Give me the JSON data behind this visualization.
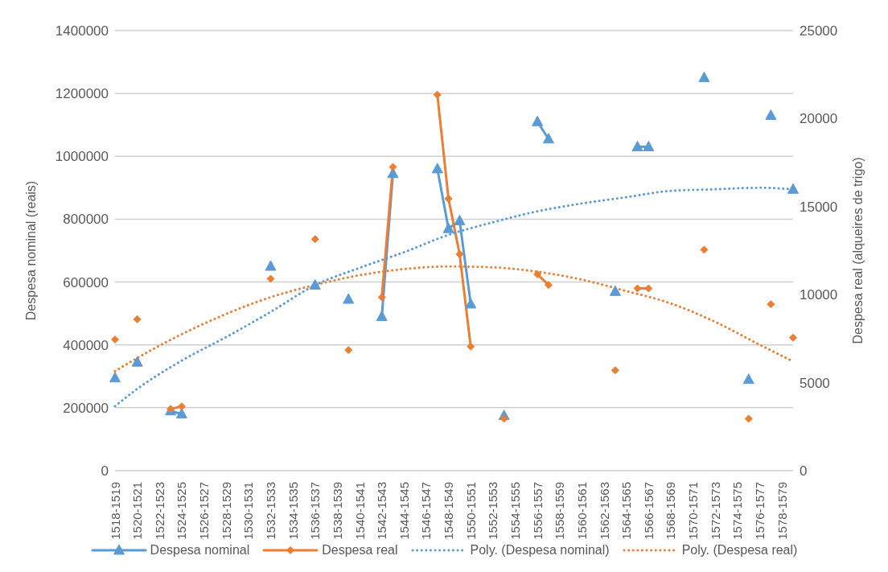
{
  "chart_data": {
    "type": "line",
    "xlabel": null,
    "ylabel": "Despesa nominal (reais)",
    "y2label": "Despesa real (alqueires de trigo)",
    "categories": [
      "1518-1519",
      null,
      "1520-1521",
      null,
      "1522-1523",
      null,
      "1524-1525",
      null,
      "1526-1527",
      null,
      "1528-1529",
      null,
      "1530-1531",
      null,
      "1532-1533",
      null,
      "1534-1535",
      null,
      "1536-1537",
      null,
      "1538-1539",
      null,
      "1540-1541",
      null,
      "1542-1543",
      null,
      "1544-1545",
      null,
      "1546-1547",
      null,
      "1548-1549",
      null,
      "1550-1551",
      null,
      "1552-1553",
      null,
      "1554-1555",
      null,
      "1556-1557",
      null,
      "1558-1559",
      null,
      "1560-1561",
      null,
      "1562-1563",
      null,
      "1564-1565",
      null,
      "1566-1567",
      null,
      "1568-1569",
      null,
      "1570-1571",
      null,
      "1572-1573",
      null,
      "1574-1575",
      null,
      "1576-1577",
      null,
      "1578-1579",
      null
    ],
    "series": [
      {
        "name": "Despesa nominal",
        "color": "#5b9bd5",
        "marker": "triangle",
        "line_style": "solid",
        "values": [
          295000,
          null,
          345000,
          null,
          null,
          190000,
          180000,
          null,
          null,
          null,
          null,
          null,
          null,
          null,
          650000,
          null,
          null,
          null,
          590000,
          null,
          null,
          545000,
          null,
          null,
          490000,
          945000,
          null,
          null,
          null,
          960000,
          770000,
          795000,
          530000,
          null,
          null,
          175000,
          null,
          null,
          1110000,
          1055000,
          null,
          null,
          null,
          null,
          null,
          570000,
          null,
          1030000,
          1030000,
          null,
          null,
          null,
          null,
          1250000,
          null,
          null,
          null,
          290000,
          null,
          1130000,
          null,
          895000
        ]
      },
      {
        "name": "Despesa real",
        "color": "#ed7d31",
        "marker": "diamond",
        "line_style": "solid",
        "axis": "y2",
        "values": [
          7450,
          null,
          8600,
          null,
          null,
          3500,
          3650,
          null,
          null,
          null,
          null,
          null,
          null,
          null,
          10900,
          null,
          null,
          null,
          13150,
          null,
          null,
          6850,
          null,
          null,
          9850,
          17250,
          null,
          null,
          null,
          21350,
          15450,
          12300,
          7050,
          null,
          null,
          2950,
          null,
          null,
          11150,
          10550,
          null,
          null,
          null,
          null,
          null,
          5700,
          null,
          10350,
          10350,
          null,
          null,
          null,
          null,
          12550,
          null,
          null,
          null,
          2950,
          null,
          9450,
          null,
          7550
        ]
      },
      {
        "name": "Poly. (Despesa nominal)",
        "color": "#5b9bd5",
        "marker": "none",
        "line_style": "dotted",
        "values": [
          205000,
          null,
          260000,
          null,
          null,
          null,
          350000,
          null,
          null,
          null,
          425000,
          null,
          null,
          null,
          505000,
          null,
          null,
          null,
          590000,
          null,
          null,
          null,
          645000,
          null,
          null,
          null,
          695000,
          null,
          null,
          null,
          750000,
          null,
          null,
          null,
          790000,
          null,
          null,
          null,
          825000,
          null,
          null,
          null,
          850000,
          null,
          null,
          null,
          870000,
          null,
          null,
          null,
          890000,
          null,
          null,
          null,
          895000,
          null,
          null,
          null,
          900000,
          null,
          null,
          895000
        ]
      },
      {
        "name": "Poly. (Despesa real)",
        "color": "#ed7d31",
        "marker": "none",
        "line_style": "dotted",
        "axis": "y2",
        "values": [
          5650,
          null,
          6400,
          null,
          null,
          null,
          7750,
          null,
          null,
          null,
          8900,
          null,
          null,
          null,
          9850,
          null,
          null,
          null,
          10550,
          null,
          null,
          null,
          11100,
          null,
          null,
          null,
          11450,
          null,
          null,
          null,
          11600,
          null,
          null,
          null,
          11550,
          null,
          null,
          null,
          11300,
          null,
          null,
          null,
          10850,
          null,
          null,
          null,
          10200,
          null,
          null,
          null,
          9500,
          null,
          null,
          null,
          8450,
          null,
          null,
          null,
          7150,
          null,
          null,
          6200
        ]
      }
    ],
    "ylim": [
      0,
      1400000
    ],
    "yticks": [
      0,
      200000,
      400000,
      600000,
      800000,
      1000000,
      1200000,
      1400000
    ],
    "y2lim": [
      0,
      25000
    ],
    "y2ticks": [
      0,
      5000,
      10000,
      15000,
      20000,
      25000
    ],
    "grid": "y",
    "legend": "bottom"
  }
}
